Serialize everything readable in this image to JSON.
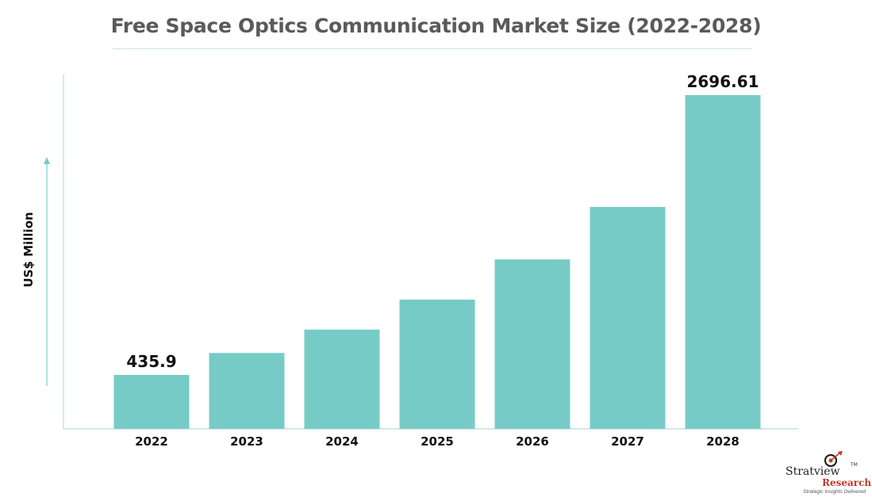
{
  "chart_data": {
    "type": "bar",
    "title": "Free Space Optics Communication Market Size (2022-2028)",
    "ylabel": "US$ Million",
    "xlabel": "",
    "categories": [
      "2022",
      "2023",
      "2024",
      "2025",
      "2026",
      "2027",
      "2028"
    ],
    "values": [
      435.9,
      613,
      802,
      1044,
      1369,
      1793,
      2696.61
    ],
    "data_labels": [
      "435.9",
      "",
      "",
      "",
      "",
      "",
      "2696.61"
    ],
    "ylim": [
      0,
      2900
    ],
    "grid": false,
    "legend": "none",
    "bar_color": "#77cbc6",
    "axis_color": "#b7dedb"
  },
  "logo": {
    "name": "Stratview",
    "tm": "TM",
    "sub": "Research",
    "tagline": "Strategic Insights Delivered"
  }
}
